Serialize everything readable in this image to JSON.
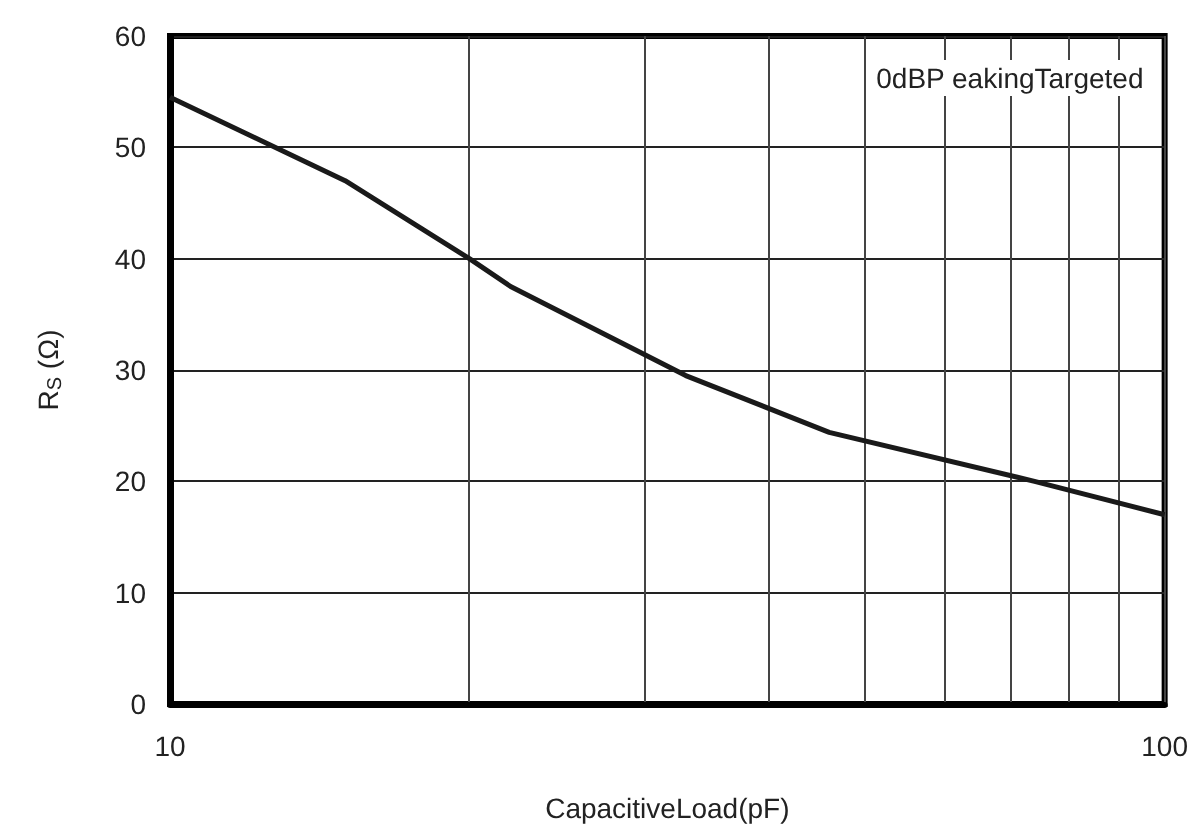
{
  "chart_data": {
    "type": "line",
    "xlabel": "CapacitiveLoad(pF)",
    "ylabel": "R$_{S}$ (Ω)",
    "annotations": [
      "0dBP eakingTargeted"
    ],
    "series": [
      {
        "color": "#1a1a1a",
        "x": [
          10,
          15,
          20,
          22,
          33,
          46,
          74,
          100
        ],
        "values": [
          54.5,
          47,
          40,
          37.5,
          29.5,
          24.4,
          20,
          17
        ]
      }
    ],
    "log": "x",
    "xlim": [
      10,
      100
    ],
    "ylim": [
      0,
      60
    ],
    "xticks": [
      10,
      {
        "value": 20,
        "label": null
      },
      {
        "value": 30,
        "label": null
      },
      {
        "value": 40,
        "label": null
      },
      {
        "value": 50,
        "label": null
      },
      {
        "value": 60,
        "label": null
      },
      {
        "value": 70,
        "label": null
      },
      {
        "value": 80,
        "label": null
      },
      {
        "value": 90,
        "label": null
      },
      100
    ],
    "yticks": [
      0,
      10,
      20,
      30,
      40,
      50,
      60
    ],
    "grid": true,
    "marker": "none",
    "line_style": "solid"
  }
}
